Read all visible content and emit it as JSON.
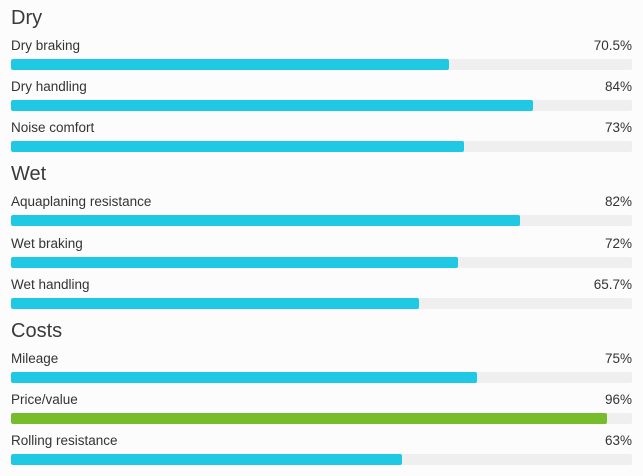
{
  "colors": {
    "bar": "#1fc8e3",
    "bar_highlight": "#76bc2b",
    "track": "#efefef"
  },
  "sections": [
    {
      "title": "Dry",
      "metrics": [
        {
          "label": "Dry braking",
          "value_text": "70.5%",
          "value": 70.5,
          "highlight": false
        },
        {
          "label": "Dry handling",
          "value_text": "84%",
          "value": 84,
          "highlight": false
        },
        {
          "label": "Noise comfort",
          "value_text": "73%",
          "value": 73,
          "highlight": false
        }
      ]
    },
    {
      "title": "Wet",
      "metrics": [
        {
          "label": "Aquaplaning resistance",
          "value_text": "82%",
          "value": 82,
          "highlight": false
        },
        {
          "label": "Wet braking",
          "value_text": "72%",
          "value": 72,
          "highlight": false
        },
        {
          "label": "Wet handling",
          "value_text": "65.7%",
          "value": 65.7,
          "highlight": false
        }
      ]
    },
    {
      "title": "Costs",
      "metrics": [
        {
          "label": "Mileage",
          "value_text": "75%",
          "value": 75,
          "highlight": false
        },
        {
          "label": "Price/value",
          "value_text": "96%",
          "value": 96,
          "highlight": true
        },
        {
          "label": "Rolling resistance",
          "value_text": "63%",
          "value": 63,
          "highlight": false
        }
      ]
    }
  ]
}
